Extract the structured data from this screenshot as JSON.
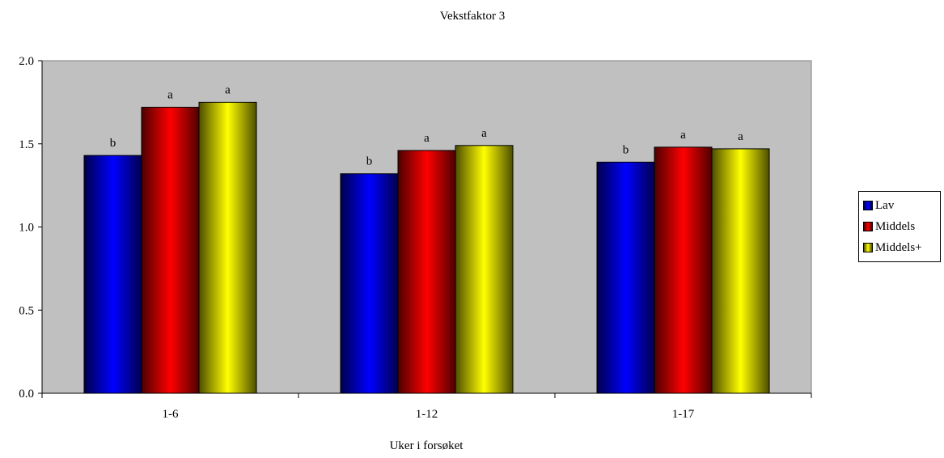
{
  "chart_data": {
    "type": "bar",
    "title": "Vekstfaktor 3",
    "xlabel": "Uker i forsøket",
    "ylabel": "",
    "ylim": [
      0,
      2.0
    ],
    "yticks": [
      "0.0",
      "0.5",
      "1.0",
      "1.5",
      "2.0"
    ],
    "ytick_values": [
      0,
      0.5,
      1.0,
      1.5,
      2.0
    ],
    "categories": [
      "1-6",
      "1-12",
      "1-17"
    ],
    "series": [
      {
        "name": "Lav",
        "values": [
          1.43,
          1.32,
          1.39
        ],
        "labels": [
          "b",
          "b",
          "b"
        ],
        "color": "#0000ff"
      },
      {
        "name": "Middels",
        "values": [
          1.72,
          1.46,
          1.48
        ],
        "labels": [
          "a",
          "a",
          "a"
        ],
        "color": "#ff0000"
      },
      {
        "name": "Middels+",
        "values": [
          1.75,
          1.49,
          1.47
        ],
        "labels": [
          "a",
          "a",
          "a"
        ],
        "color": "#ffff00"
      }
    ],
    "plot_background": "#c0c0c0",
    "grid": false,
    "legend_position": "right"
  }
}
